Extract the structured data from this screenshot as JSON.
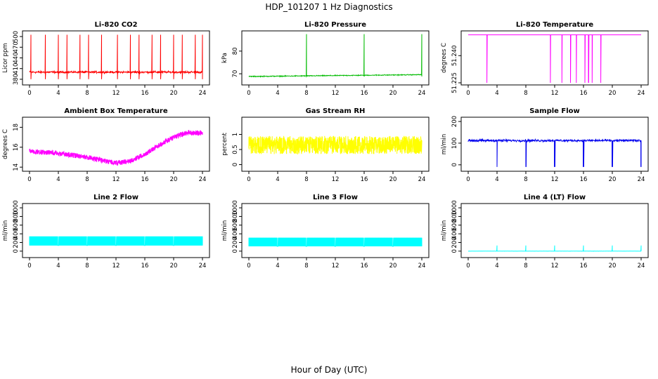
{
  "figure": {
    "title": "HDP_101207  1 Hz Diagnostics",
    "xlabel": "Hour of Day (UTC)"
  },
  "chart_data": [
    {
      "type": "line",
      "title": "Li-820 CO2",
      "ylabel": "Licor ppm",
      "color": "#ff0000",
      "xlim": [
        0,
        24
      ],
      "xticks": [
        0,
        4,
        8,
        12,
        16,
        20,
        24
      ],
      "ylim": [
        370,
        510
      ],
      "yticks": [
        380,
        410,
        440,
        470,
        500
      ],
      "series": [
        {
          "name": "CO2",
          "pattern": "baseline_spikes",
          "baseline": 400,
          "noise": 3,
          "spikes_at": [
            0.2,
            2.2,
            4.0,
            5.2,
            7.0,
            8.2,
            10.0,
            12.2,
            14.0,
            15.2,
            17.0,
            18.2,
            20.0,
            21.2,
            23.0,
            24.0
          ],
          "spike_peak": 505,
          "dip_to": 380
        }
      ]
    },
    {
      "type": "line",
      "title": "Li-820 Pressure",
      "ylabel": "kPa",
      "color": "#00bb00",
      "xlim": [
        0,
        24
      ],
      "xticks": [
        0,
        4,
        8,
        12,
        16,
        20,
        24
      ],
      "ylim": [
        66,
        88
      ],
      "yticks": [
        70,
        80
      ],
      "series": [
        {
          "name": "Pressure",
          "pattern": "drift_spikes",
          "start": 68.8,
          "end": 69.6,
          "noise": 0.2,
          "spikes_at": [
            8.0,
            16.0,
            24.0
          ],
          "spike_peak": 87.5
        }
      ]
    },
    {
      "type": "line",
      "title": "Li-820 Temperature",
      "ylabel": "degrees C",
      "color": "#ff00ff",
      "xlim": [
        0,
        24
      ],
      "xticks": [
        0,
        4,
        8,
        12,
        16,
        20,
        24
      ],
      "ylim": [
        51.225,
        51.2525
      ],
      "yticks": [
        51.225,
        51.24
      ],
      "series": [
        {
          "name": "Temperature",
          "pattern": "flat_dips",
          "level": 51.2515,
          "dips_at": [
            2.6,
            11.4,
            13.0,
            14.2,
            15.0,
            16.2,
            16.7,
            17.2,
            18.4
          ],
          "dip_to": 51.225
        }
      ]
    },
    {
      "type": "line",
      "title": "Ambient Box Temperature",
      "ylabel": "degrees C",
      "color": "#ff00ff",
      "xlim": [
        0,
        24
      ],
      "xticks": [
        0,
        4,
        8,
        12,
        16,
        20,
        24
      ],
      "ylim": [
        13.8,
        18.8
      ],
      "yticks": [
        14,
        16,
        18
      ],
      "series": [
        {
          "name": "Box temperature",
          "pattern": "noisy_band",
          "x": [
            0,
            4,
            8,
            12,
            14,
            16,
            18,
            20,
            22,
            24
          ],
          "y": [
            15.6,
            15.4,
            15.0,
            14.4,
            14.6,
            15.3,
            16.2,
            17.0,
            17.5,
            17.4
          ],
          "band": 0.5
        }
      ]
    },
    {
      "type": "line",
      "title": "Gas Stream RH",
      "ylabel": "percent",
      "color": "#ffff00",
      "xlim": [
        0,
        24
      ],
      "xticks": [
        0,
        4,
        8,
        12,
        16,
        20,
        24
      ],
      "ylim": [
        -0.15,
        1.5
      ],
      "yticks": [
        0.0,
        0.5,
        1.0
      ],
      "series": [
        {
          "name": "RH",
          "pattern": "noisy_band",
          "x": [
            0,
            24
          ],
          "y": [
            0.65,
            0.65
          ],
          "band": 0.6
        }
      ]
    },
    {
      "type": "line",
      "title": "Sample Flow",
      "ylabel": "ml/min",
      "color": "#0000ee",
      "xlim": [
        0,
        24
      ],
      "xticks": [
        0,
        4,
        8,
        12,
        16,
        20,
        24
      ],
      "ylim": [
        -20,
        210
      ],
      "yticks": [
        0,
        100,
        200
      ],
      "series": [
        {
          "name": "Sample flow",
          "pattern": "baseline_dips",
          "baseline": 112,
          "noise": 6,
          "dips_at": [
            4.0,
            8.0,
            12.0,
            16.0,
            20.0,
            24.0
          ],
          "dip_to": -10
        }
      ]
    },
    {
      "type": "line",
      "title": "Line 2 Flow",
      "ylabel": "ml/min",
      "color": "#00ffff",
      "xlim": [
        0,
        24
      ],
      "xticks": [
        0,
        4,
        8,
        12,
        16,
        20,
        24
      ],
      "ylim": [
        -100,
        1050
      ],
      "yticks": [
        0,
        200,
        400,
        600,
        800,
        1000
      ],
      "series": [
        {
          "name": "Line 2",
          "pattern": "band_gaps",
          "low": 130,
          "high": 340,
          "gaps_at": [
            4.0,
            8.0,
            12.0,
            16.0,
            20.0
          ]
        }
      ]
    },
    {
      "type": "line",
      "title": "Line 3 Flow",
      "ylabel": "ml/min",
      "color": "#00ffff",
      "xlim": [
        0,
        24
      ],
      "xticks": [
        0,
        4,
        8,
        12,
        16,
        20,
        24
      ],
      "ylim": [
        -100,
        1050
      ],
      "yticks": [
        0,
        200,
        400,
        600,
        800,
        1000
      ],
      "series": [
        {
          "name": "Line 3",
          "pattern": "band_gaps",
          "low": 110,
          "high": 310,
          "gaps_at": [
            4.0,
            8.0,
            12.0,
            16.0,
            20.0
          ]
        }
      ]
    },
    {
      "type": "line",
      "title": "Line 4 (LT) Flow",
      "ylabel": "ml/min",
      "color": "#00ffff",
      "xlim": [
        0,
        24
      ],
      "xticks": [
        0,
        4,
        8,
        12,
        16,
        20,
        24
      ],
      "ylim": [
        -100,
        1050
      ],
      "yticks": [
        0,
        200,
        400,
        600,
        800,
        1000
      ],
      "series": [
        {
          "name": "Line 4",
          "pattern": "baseline_spikes",
          "baseline": 0,
          "noise": 2,
          "spikes_at": [
            4.0,
            8.0,
            12.0,
            16.0,
            20.0,
            24.0
          ],
          "spike_peak": 130,
          "dip_to": 0
        }
      ]
    }
  ]
}
